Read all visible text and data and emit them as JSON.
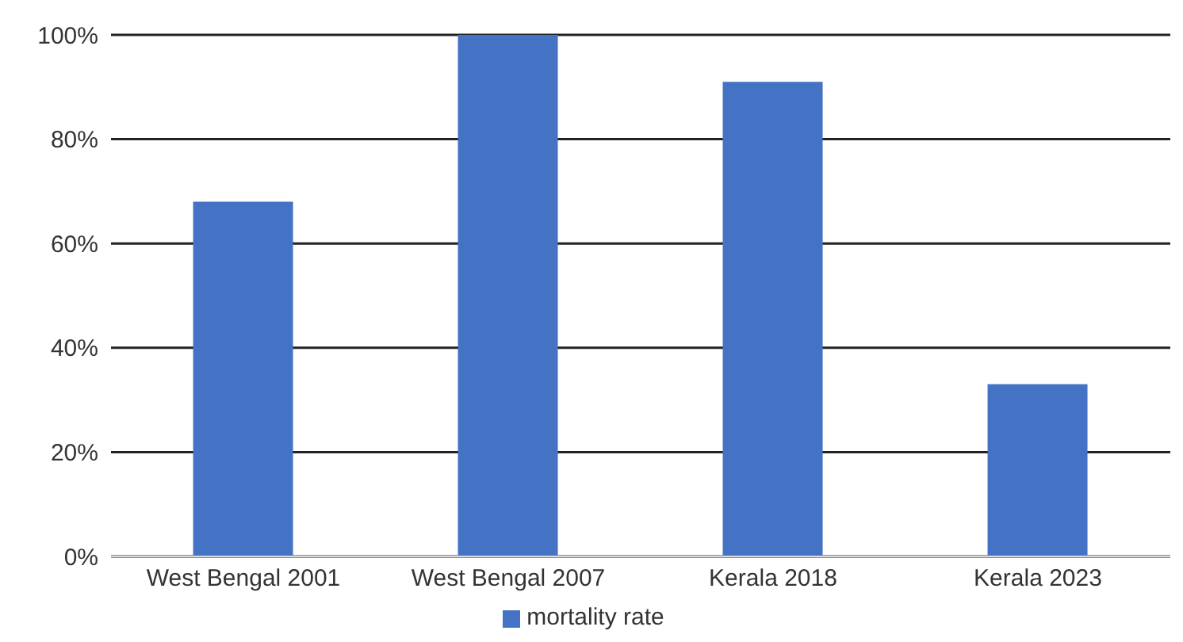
{
  "chart_data": {
    "type": "bar",
    "categories": [
      "West Bengal 2001",
      "West Bengal 2007",
      "Kerala 2018",
      "Kerala 2023"
    ],
    "series": [
      {
        "name": "mortality rate",
        "color": "#4472c4",
        "values": [
          68,
          100,
          91,
          33
        ]
      }
    ],
    "ylim": [
      0,
      100
    ],
    "yticks": [
      {
        "value": 0,
        "label": "0%"
      },
      {
        "value": 20,
        "label": "20%"
      },
      {
        "value": 40,
        "label": "40%"
      },
      {
        "value": 60,
        "label": "60%"
      },
      {
        "value": 80,
        "label": "80%"
      },
      {
        "value": 100,
        "label": "100%"
      }
    ],
    "grid": "y",
    "legend": "bottom"
  }
}
